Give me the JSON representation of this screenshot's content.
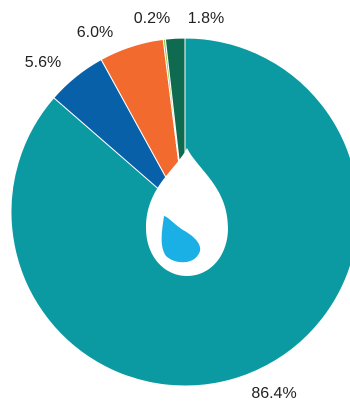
{
  "chart_data": {
    "type": "pie",
    "start_angle_deg": 0,
    "direction": "clockwise",
    "slices": [
      {
        "value": 86.4,
        "label": "86.4%",
        "color": "#0B9AA2"
      },
      {
        "value": 5.6,
        "label": "5.6%",
        "color": "#0860A8"
      },
      {
        "value": 6.0,
        "label": "6.0%",
        "color": "#F26A2E"
      },
      {
        "value": 0.2,
        "label": "0.2%",
        "color": "#8DC63F"
      },
      {
        "value": 1.8,
        "label": "1.8%",
        "color": "#0E6B4F"
      }
    ],
    "center_icon": "water-drop-icon",
    "icon_colors": {
      "drop_outer": "#ffffff",
      "drop_inner": "#1AB0E6"
    }
  }
}
